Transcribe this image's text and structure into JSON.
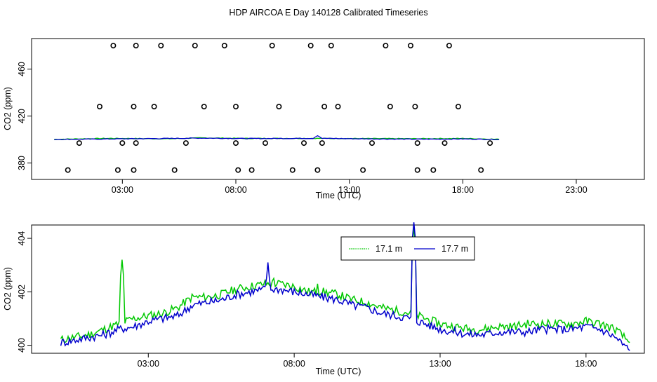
{
  "title": "HDP AIRCOA E  Day 140128  Calibrated Timeseries",
  "colors": {
    "green": "#00c800",
    "blue": "#0000cc",
    "markers": "#000000"
  },
  "chart_data": [
    {
      "type": "scatter",
      "xlabel": "Time (UTC)",
      "ylabel": "CO2 (ppm)",
      "xlim": [
        -1.0,
        26.0
      ],
      "ylim": [
        366,
        486
      ],
      "xticks": [
        3,
        8,
        13,
        18,
        23
      ],
      "xtick_labels": [
        "03:00",
        "08:00",
        "13:00",
        "18:00",
        "23:00"
      ],
      "yticks": [
        380,
        420,
        460
      ],
      "ytick_labels": [
        "380",
        "420",
        "460"
      ],
      "grid": false,
      "markers": [
        {
          "x": 2.6,
          "y": 480
        },
        {
          "x": 3.6,
          "y": 480
        },
        {
          "x": 4.7,
          "y": 480
        },
        {
          "x": 6.2,
          "y": 480
        },
        {
          "x": 7.5,
          "y": 480
        },
        {
          "x": 9.6,
          "y": 480
        },
        {
          "x": 11.3,
          "y": 480
        },
        {
          "x": 12.2,
          "y": 480
        },
        {
          "x": 14.6,
          "y": 480
        },
        {
          "x": 15.7,
          "y": 480
        },
        {
          "x": 17.4,
          "y": 480
        },
        {
          "x": 2.0,
          "y": 428
        },
        {
          "x": 3.5,
          "y": 428
        },
        {
          "x": 4.4,
          "y": 428
        },
        {
          "x": 6.6,
          "y": 428
        },
        {
          "x": 8.0,
          "y": 428
        },
        {
          "x": 9.9,
          "y": 428
        },
        {
          "x": 11.9,
          "y": 428
        },
        {
          "x": 12.5,
          "y": 428
        },
        {
          "x": 14.8,
          "y": 428
        },
        {
          "x": 15.9,
          "y": 428
        },
        {
          "x": 17.8,
          "y": 428
        },
        {
          "x": 1.1,
          "y": 397
        },
        {
          "x": 3.0,
          "y": 397
        },
        {
          "x": 3.6,
          "y": 397
        },
        {
          "x": 5.8,
          "y": 397
        },
        {
          "x": 8.0,
          "y": 397
        },
        {
          "x": 9.3,
          "y": 397
        },
        {
          "x": 11.0,
          "y": 397
        },
        {
          "x": 11.8,
          "y": 397
        },
        {
          "x": 14.0,
          "y": 397
        },
        {
          "x": 16.0,
          "y": 397
        },
        {
          "x": 17.2,
          "y": 397
        },
        {
          "x": 19.2,
          "y": 397
        },
        {
          "x": 0.6,
          "y": 374
        },
        {
          "x": 2.8,
          "y": 374
        },
        {
          "x": 3.5,
          "y": 374
        },
        {
          "x": 5.3,
          "y": 374
        },
        {
          "x": 8.1,
          "y": 374
        },
        {
          "x": 8.7,
          "y": 374
        },
        {
          "x": 10.5,
          "y": 374
        },
        {
          "x": 11.6,
          "y": 374
        },
        {
          "x": 13.6,
          "y": 374
        },
        {
          "x": 16.0,
          "y": 374
        },
        {
          "x": 16.7,
          "y": 374
        },
        {
          "x": 18.8,
          "y": 374
        }
      ],
      "lines": [
        {
          "color": "#00c800",
          "points": [
            [
              0,
              400.2
            ],
            [
              2.5,
              401.0
            ],
            [
              5,
              400.6
            ],
            [
              6.5,
              401.4
            ],
            [
              8.5,
              400.9
            ],
            [
              11,
              401.0
            ],
            [
              13.5,
              400.8
            ],
            [
              16,
              400.7
            ],
            [
              18,
              400.9
            ],
            [
              19.6,
              400.2
            ]
          ]
        },
        {
          "color": "#0000cc",
          "points": [
            [
              0,
              400.1
            ],
            [
              2.5,
              400.5
            ],
            [
              5,
              400.9
            ],
            [
              6.5,
              401.2
            ],
            [
              8.5,
              400.8
            ],
            [
              11.4,
              401.0
            ],
            [
              11.6,
              403.5
            ],
            [
              11.8,
              401.0
            ],
            [
              13.5,
              400.6
            ],
            [
              16,
              400.3
            ],
            [
              18,
              400.5
            ],
            [
              19.6,
              400.0
            ]
          ]
        }
      ]
    },
    {
      "type": "line",
      "xlabel": "Time (UTC)",
      "ylabel": "CO2 (ppm)",
      "xlim": [
        -1.0,
        20.0
      ],
      "ylim": [
        399.7,
        404.5
      ],
      "xticks": [
        3,
        8,
        13,
        18
      ],
      "xtick_labels": [
        "03:00",
        "08:00",
        "13:00",
        "18:00"
      ],
      "yticks": [
        400,
        402,
        404
      ],
      "ytick_labels": [
        "400",
        "402",
        "404"
      ],
      "grid": false,
      "legend": "top-right",
      "x": [
        0.0,
        0.5,
        1.0,
        1.5,
        2.0,
        2.5,
        3.0,
        3.5,
        4.0,
        4.5,
        5.0,
        5.5,
        6.0,
        6.5,
        7.0,
        7.5,
        8.0,
        8.5,
        9.0,
        9.5,
        10.0,
        10.5,
        11.0,
        11.5,
        12.0,
        12.5,
        13.0,
        13.5,
        14.0,
        14.5,
        15.0,
        15.5,
        16.0,
        16.5,
        17.0,
        17.5,
        18.0,
        18.5,
        19.0,
        19.5
      ],
      "series": [
        {
          "name": "17.1 m",
          "color": "#00c800",
          "values": [
            400.2,
            400.3,
            400.4,
            400.6,
            400.8,
            401.0,
            401.1,
            401.2,
            401.4,
            401.8,
            401.8,
            401.9,
            402.1,
            402.2,
            402.3,
            402.3,
            402.2,
            402.0,
            402.0,
            401.9,
            401.7,
            401.6,
            401.4,
            401.3,
            401.2,
            401.0,
            400.8,
            400.7,
            400.6,
            400.6,
            400.7,
            400.7,
            400.8,
            400.8,
            400.8,
            400.8,
            400.9,
            400.8,
            400.6,
            400.1
          ],
          "spikes": [
            [
              2.1,
              403.2
            ],
            [
              7.3,
              402.5
            ],
            [
              8.8,
              402.3
            ],
            [
              12.1,
              404.4
            ]
          ]
        },
        {
          "name": "17.7 m",
          "color": "#0000cc",
          "values": [
            400.1,
            400.2,
            400.3,
            400.4,
            400.6,
            400.7,
            400.9,
            401.0,
            401.1,
            401.5,
            401.6,
            401.7,
            401.9,
            402.0,
            402.1,
            402.1,
            402.0,
            401.9,
            401.8,
            401.7,
            401.5,
            401.4,
            401.2,
            401.1,
            401.0,
            400.8,
            400.6,
            400.5,
            400.4,
            400.4,
            400.5,
            400.5,
            400.5,
            400.6,
            400.6,
            400.6,
            400.7,
            400.6,
            400.3,
            399.8
          ],
          "spikes": [
            [
              7.1,
              403.1
            ],
            [
              12.1,
              404.6
            ]
          ]
        }
      ]
    }
  ]
}
